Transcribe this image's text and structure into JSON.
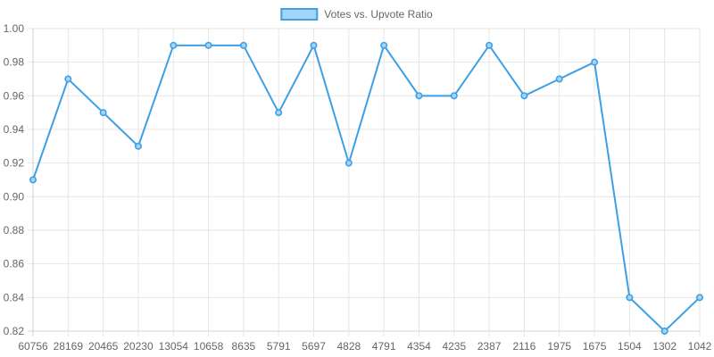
{
  "chart_data": {
    "type": "line",
    "categories": [
      "60756",
      "28169",
      "20465",
      "20230",
      "13054",
      "10658",
      "8635",
      "5791",
      "5697",
      "4828",
      "4791",
      "4354",
      "4235",
      "2387",
      "2116",
      "1975",
      "1675",
      "1504",
      "1302",
      "1042"
    ],
    "series": [
      {
        "name": "Votes vs. Upvote Ratio",
        "values": [
          0.91,
          0.97,
          0.95,
          0.93,
          0.99,
          0.99,
          0.99,
          0.95,
          0.99,
          0.92,
          0.99,
          0.96,
          0.96,
          0.99,
          0.96,
          0.97,
          0.98,
          0.84,
          0.82,
          0.84
        ]
      }
    ],
    "ylim": [
      0.82,
      1.0
    ],
    "yticks": [
      "0.82",
      "0.84",
      "0.86",
      "0.88",
      "0.90",
      "0.92",
      "0.94",
      "0.96",
      "0.98",
      "1.00"
    ],
    "grid": true,
    "legend_position": "top",
    "colors": {
      "line": "#3ea0e4",
      "fill": "#a5d4f6",
      "grid": "#e6e6e6",
      "axis": "#d0d0d0",
      "text": "#666666"
    }
  }
}
